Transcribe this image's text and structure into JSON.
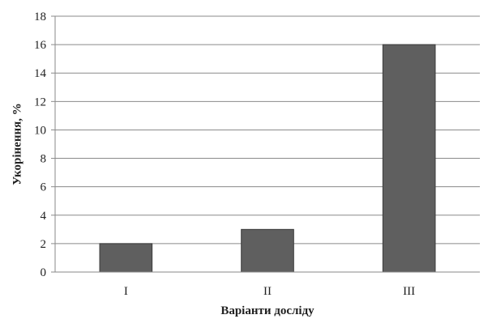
{
  "chart_data": {
    "type": "bar",
    "categories": [
      "I",
      "II",
      "III"
    ],
    "values": [
      2,
      3,
      16
    ],
    "xlabel": "Варіанти досліду",
    "ylabel": "Укорінення, %",
    "ylim": [
      0,
      18
    ],
    "yticks": [
      0,
      2,
      4,
      6,
      8,
      10,
      12,
      14,
      16,
      18
    ],
    "grid": true,
    "legend": "none",
    "colors": {
      "bar": "#5f5f5f",
      "grid": "#8a8a8a",
      "axis": "#8a8a8a"
    }
  }
}
